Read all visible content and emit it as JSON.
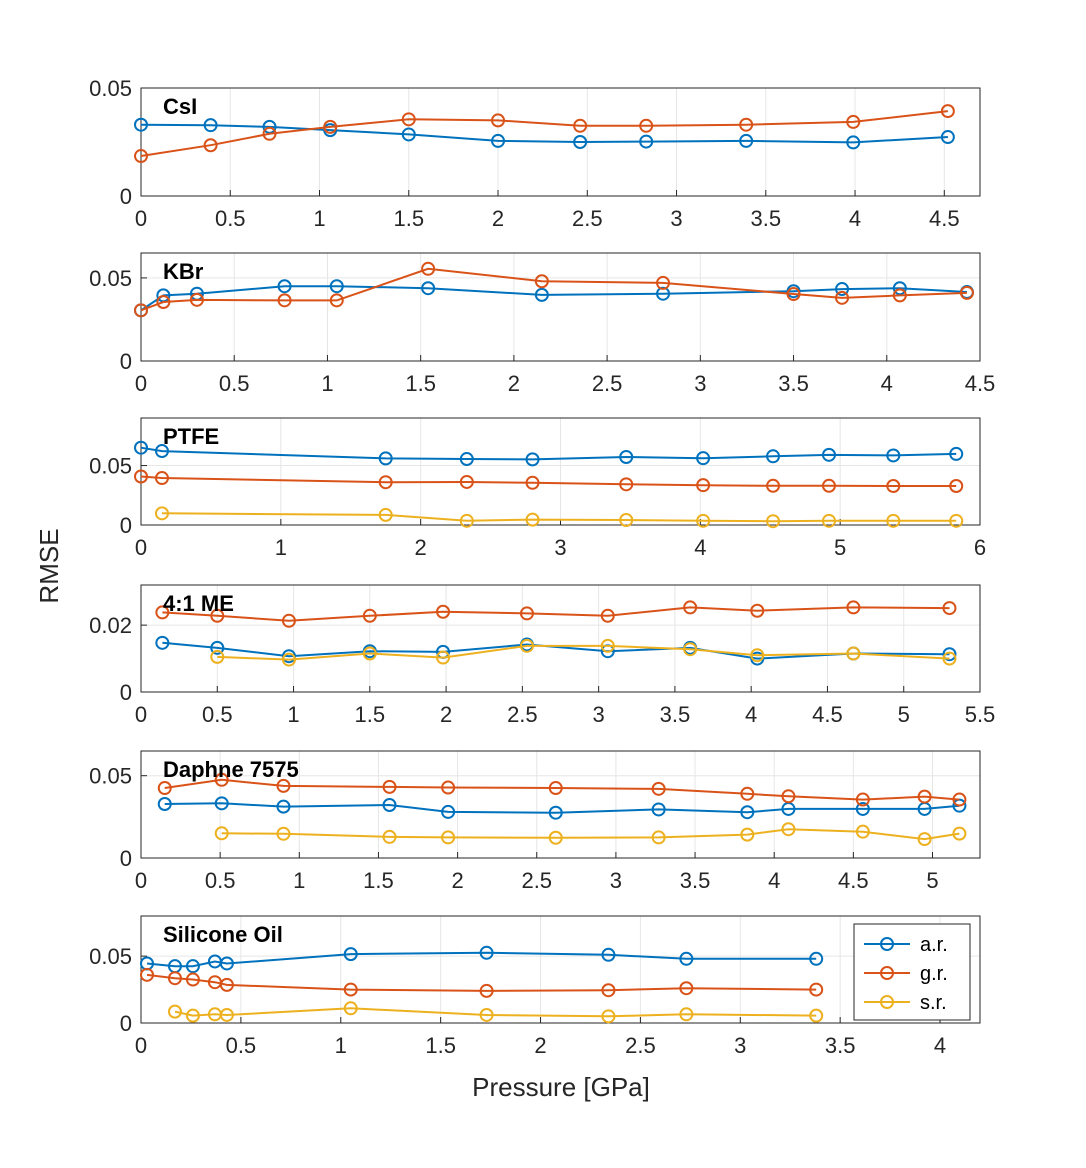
{
  "figure": {
    "ylabel": "RMSE",
    "xlabel": "Pressure [GPa]"
  },
  "colors": {
    "a.r.": "#0072BD",
    "g.r.": "#D95319",
    "s.r.": "#EDB120",
    "grid": "#e6e6e6",
    "axis": "#262626"
  },
  "legend": {
    "location": "top-right of last panel",
    "entries": [
      "a.r.",
      "g.r.",
      "s.r."
    ]
  },
  "chart_data": [
    {
      "type": "line",
      "title": "CsI",
      "xlim": [
        0,
        4.7
      ],
      "ylim": [
        0,
        0.05
      ],
      "xticks": [
        "0",
        "0.5",
        "1",
        "1.5",
        "2",
        "2.5",
        "3",
        "3.5",
        "4",
        "4.5"
      ],
      "yticks": [
        "0",
        "0.05"
      ],
      "series": [
        {
          "name": "a.r.",
          "x": [
            0,
            0.39,
            0.72,
            1.06,
            1.5,
            2.0,
            2.46,
            2.83,
            3.39,
            3.99,
            4.52
          ],
          "y": [
            0.033,
            0.0328,
            0.032,
            0.0305,
            0.0285,
            0.0255,
            0.025,
            0.0252,
            0.0255,
            0.0248,
            0.0273
          ]
        },
        {
          "name": "g.r.",
          "x": [
            0,
            0.39,
            0.72,
            1.06,
            1.5,
            2.0,
            2.46,
            2.83,
            3.39,
            3.99,
            4.52
          ],
          "y": [
            0.0185,
            0.0235,
            0.0288,
            0.032,
            0.0355,
            0.035,
            0.0325,
            0.0325,
            0.033,
            0.0343,
            0.0393
          ]
        }
      ]
    },
    {
      "type": "line",
      "title": "KBr",
      "xlim": [
        0,
        4.5
      ],
      "ylim": [
        0,
        0.065
      ],
      "xticks": [
        "0",
        "0.5",
        "1",
        "1.5",
        "2",
        "2.5",
        "3",
        "3.5",
        "4",
        "4.5"
      ],
      "yticks": [
        "0",
        "0.05"
      ],
      "series": [
        {
          "name": "a.r.",
          "x": [
            0,
            0.12,
            0.3,
            0.77,
            1.05,
            1.54,
            2.15,
            2.8,
            3.5,
            3.76,
            4.07,
            4.43
          ],
          "y": [
            0.0305,
            0.0395,
            0.0405,
            0.045,
            0.045,
            0.0438,
            0.0398,
            0.0405,
            0.042,
            0.0433,
            0.0438,
            0.0415
          ]
        },
        {
          "name": "g.r.",
          "x": [
            0,
            0.12,
            0.3,
            0.77,
            1.05,
            1.54,
            2.15,
            2.8,
            3.5,
            3.76,
            4.07,
            4.43
          ],
          "y": [
            0.0305,
            0.0355,
            0.0368,
            0.0365,
            0.0365,
            0.0555,
            0.048,
            0.047,
            0.0403,
            0.038,
            0.0395,
            0.041
          ]
        }
      ]
    },
    {
      "type": "line",
      "title": "PTFE",
      "xlim": [
        0,
        6
      ],
      "ylim": [
        0,
        0.09
      ],
      "xticks": [
        "0",
        "1",
        "2",
        "3",
        "4",
        "5",
        "6"
      ],
      "yticks": [
        "0",
        "0.05"
      ],
      "series": [
        {
          "name": "a.r.",
          "x": [
            0,
            0.15,
            1.75,
            2.33,
            2.8,
            3.47,
            4.02,
            4.52,
            4.92,
            5.38,
            5.83
          ],
          "y": [
            0.065,
            0.0622,
            0.056,
            0.0555,
            0.0552,
            0.0572,
            0.0562,
            0.0578,
            0.059,
            0.0585,
            0.0598
          ]
        },
        {
          "name": "g.r.",
          "x": [
            0,
            0.15,
            1.75,
            2.33,
            2.8,
            3.47,
            4.02,
            4.52,
            4.92,
            5.38,
            5.83
          ],
          "y": [
            0.0408,
            0.0395,
            0.036,
            0.0362,
            0.0355,
            0.0342,
            0.0335,
            0.033,
            0.033,
            0.0328,
            0.0328
          ]
        },
        {
          "name": "s.r.",
          "x": [
            0.15,
            1.75,
            2.33,
            2.8,
            3.47,
            4.02,
            4.52,
            4.92,
            5.38,
            5.83
          ],
          "y": [
            0.0098,
            0.0085,
            0.0035,
            0.0045,
            0.0042,
            0.0035,
            0.0032,
            0.0035,
            0.0035,
            0.0035
          ]
        }
      ]
    },
    {
      "type": "line",
      "title": "4:1 ME",
      "xlim": [
        0,
        5.5
      ],
      "ylim": [
        0,
        0.032
      ],
      "xticks": [
        "0",
        "0.5",
        "1",
        "1.5",
        "2",
        "2.5",
        "3",
        "3.5",
        "4",
        "4.5",
        "5",
        "5.5"
      ],
      "yticks": [
        "0",
        "0.02"
      ],
      "series": [
        {
          "name": "a.r.",
          "x": [
            0.14,
            0.5,
            0.97,
            1.5,
            1.98,
            2.53,
            3.06,
            3.6,
            4.04,
            4.67,
            5.3
          ],
          "y": [
            0.0147,
            0.0132,
            0.0107,
            0.0122,
            0.012,
            0.0142,
            0.0122,
            0.0132,
            0.01,
            0.0115,
            0.0113
          ]
        },
        {
          "name": "g.r.",
          "x": [
            0.14,
            0.5,
            0.97,
            1.5,
            1.98,
            2.53,
            3.06,
            3.6,
            4.04,
            4.67,
            5.3
          ],
          "y": [
            0.0238,
            0.0228,
            0.0213,
            0.0228,
            0.024,
            0.0235,
            0.0228,
            0.0253,
            0.0243,
            0.0253,
            0.0251
          ]
        },
        {
          "name": "s.r.",
          "x": [
            0.5,
            0.97,
            1.5,
            1.98,
            2.53,
            3.06,
            3.6,
            4.04,
            4.67,
            5.3
          ],
          "y": [
            0.0105,
            0.0097,
            0.0115,
            0.0103,
            0.0138,
            0.0138,
            0.0128,
            0.011,
            0.0115,
            0.01
          ]
        }
      ]
    },
    {
      "type": "line",
      "title": "Daphne 7575",
      "xlim": [
        0,
        5.3
      ],
      "ylim": [
        0,
        0.065
      ],
      "xticks": [
        "0",
        "0.5",
        "1",
        "1.5",
        "2",
        "2.5",
        "3",
        "3.5",
        "4",
        "4.5",
        "5"
      ],
      "yticks": [
        "0",
        "0.05"
      ],
      "series": [
        {
          "name": "a.r.",
          "x": [
            0.15,
            0.51,
            0.9,
            1.57,
            1.94,
            2.62,
            3.27,
            3.83,
            4.09,
            4.56,
            4.95,
            5.17
          ],
          "y": [
            0.0328,
            0.0332,
            0.0312,
            0.0322,
            0.028,
            0.0275,
            0.0295,
            0.0278,
            0.0298,
            0.0298,
            0.0298,
            0.0318
          ]
        },
        {
          "name": "g.r.",
          "x": [
            0.15,
            0.51,
            0.9,
            1.57,
            1.94,
            2.62,
            3.27,
            3.83,
            4.09,
            4.56,
            4.95,
            5.17
          ],
          "y": [
            0.0425,
            0.0475,
            0.0438,
            0.0432,
            0.0428,
            0.0425,
            0.042,
            0.039,
            0.0375,
            0.0355,
            0.0373,
            0.0355
          ]
        },
        {
          "name": "s.r.",
          "x": [
            0.51,
            0.9,
            1.57,
            1.94,
            2.62,
            3.27,
            3.83,
            4.09,
            4.56,
            4.95,
            5.17
          ],
          "y": [
            0.015,
            0.0147,
            0.0128,
            0.0125,
            0.0123,
            0.0125,
            0.0142,
            0.0175,
            0.016,
            0.0115,
            0.0148
          ]
        }
      ]
    },
    {
      "type": "line",
      "title": "Silicone Oil",
      "xlim": [
        0,
        4.2
      ],
      "ylim": [
        0,
        0.08
      ],
      "xticks": [
        "0",
        "0.5",
        "1",
        "1.5",
        "2",
        "2.5",
        "3",
        "3.5",
        "4"
      ],
      "yticks": [
        "0",
        "0.05"
      ],
      "series": [
        {
          "name": "a.r.",
          "x": [
            0.03,
            0.17,
            0.26,
            0.37,
            0.43,
            1.05,
            1.73,
            2.34,
            2.73,
            3.38
          ],
          "y": [
            0.0445,
            0.0425,
            0.0425,
            0.046,
            0.0445,
            0.0515,
            0.0525,
            0.051,
            0.048,
            0.048
          ]
        },
        {
          "name": "g.r.",
          "x": [
            0.03,
            0.17,
            0.26,
            0.37,
            0.43,
            1.05,
            1.73,
            2.34,
            2.73,
            3.38
          ],
          "y": [
            0.036,
            0.0335,
            0.0325,
            0.0305,
            0.0285,
            0.025,
            0.024,
            0.0245,
            0.026,
            0.025
          ]
        },
        {
          "name": "s.r.",
          "x": [
            0.17,
            0.26,
            0.37,
            0.43,
            1.05,
            1.73,
            2.34,
            2.73,
            3.38
          ],
          "y": [
            0.0085,
            0.0055,
            0.0065,
            0.006,
            0.011,
            0.006,
            0.005,
            0.0065,
            0.0055
          ]
        }
      ]
    }
  ]
}
